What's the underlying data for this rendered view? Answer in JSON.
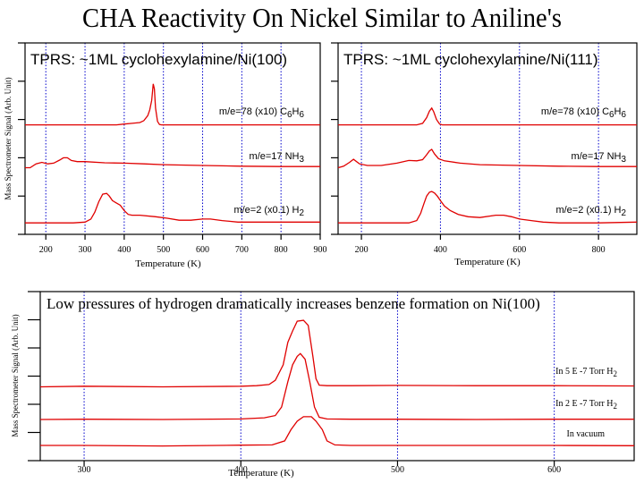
{
  "page_title": "CHA Reactivity On Nickel Similar to Aniline's",
  "chart_data": [
    {
      "id": "ni100",
      "type": "line",
      "title": "TPRS: ~1ML  cyclohexylamine/Ni(100)",
      "xlabel": "Temperature (K)",
      "ylabel": "Mass Spectrometer Signal (Arb. Unit)",
      "xlim": [
        147,
        900
      ],
      "ylim": [
        0,
        5
      ],
      "xticks": [
        200,
        300,
        400,
        500,
        600,
        700,
        800,
        900
      ],
      "yticks": [
        0,
        1,
        2,
        3,
        4,
        5
      ],
      "grid_x": [
        200,
        300,
        400,
        500,
        600,
        700,
        800
      ],
      "series": [
        {
          "name": "m/e=78 (x10) C6H6",
          "label_main": "m/e=78 (x10) C",
          "sub1": "6",
          "mid": "H",
          "sub2": "6",
          "x": [
            147,
            380,
            400,
            420,
            440,
            450,
            460,
            465,
            470,
            474,
            477,
            480,
            485,
            490,
            495,
            900
          ],
          "y": [
            2.86,
            2.86,
            2.88,
            2.9,
            2.92,
            2.97,
            3.1,
            3.25,
            3.5,
            3.93,
            3.8,
            3.3,
            2.95,
            2.87,
            2.86,
            2.86
          ]
        },
        {
          "name": "m/e=17 NH3",
          "label_main": "m/e=17  NH",
          "sub1": "3",
          "mid": "",
          "sub2": "",
          "x": [
            147,
            160,
            175,
            190,
            205,
            220,
            235,
            245,
            255,
            265,
            280,
            300,
            350,
            400,
            450,
            500,
            600,
            700,
            800,
            900
          ],
          "y": [
            1.74,
            1.74,
            1.84,
            1.88,
            1.84,
            1.86,
            1.94,
            2.0,
            2.0,
            1.93,
            1.9,
            1.9,
            1.87,
            1.86,
            1.84,
            1.82,
            1.8,
            1.78,
            1.77,
            1.77
          ]
        },
        {
          "name": "m/e=2 (x0.1) H2",
          "label_main": "m/e=2 (x0.1) H",
          "sub1": "2",
          "mid": "",
          "sub2": "",
          "x": [
            147,
            270,
            300,
            315,
            325,
            335,
            345,
            355,
            362,
            370,
            380,
            390,
            400,
            410,
            420,
            440,
            480,
            510,
            540,
            570,
            600,
            620,
            650,
            690,
            750,
            900
          ],
          "y": [
            0.3,
            0.3,
            0.32,
            0.4,
            0.58,
            0.85,
            1.05,
            1.07,
            1.0,
            0.88,
            0.82,
            0.76,
            0.62,
            0.52,
            0.5,
            0.5,
            0.46,
            0.42,
            0.37,
            0.37,
            0.4,
            0.4,
            0.36,
            0.32,
            0.32,
            0.32
          ]
        }
      ]
    },
    {
      "id": "ni111",
      "type": "line",
      "title": "TPRS: ~1ML  cyclohexylamine/Ni(111)",
      "xlabel": "Temperature (K)",
      "ylabel": "",
      "xlim": [
        141,
        897
      ],
      "ylim": [
        0,
        5
      ],
      "xticks": [
        200,
        400,
        600,
        800
      ],
      "yticks": [
        0,
        1,
        2,
        3,
        4,
        5
      ],
      "grid_x": [
        200,
        400,
        600,
        800
      ],
      "series": [
        {
          "name": "m/e=78 (x10) C6H6",
          "label_main": "m/e=78 (x10) C",
          "sub1": "6",
          "mid": "H",
          "sub2": "6",
          "x": [
            141,
            340,
            355,
            365,
            372,
            378,
            383,
            390,
            398,
            405,
            420,
            897
          ],
          "y": [
            2.86,
            2.86,
            2.9,
            3.05,
            3.22,
            3.3,
            3.2,
            3.0,
            2.88,
            2.86,
            2.86,
            2.86
          ]
        },
        {
          "name": "m/e=17 NH3",
          "label_main": "m/e=17  NH",
          "sub1": "3",
          "mid": "",
          "sub2": "",
          "x": [
            141,
            155,
            170,
            180,
            195,
            215,
            250,
            290,
            320,
            340,
            355,
            365,
            372,
            378,
            385,
            395,
            410,
            450,
            500,
            600,
            700,
            800,
            897
          ],
          "y": [
            1.74,
            1.78,
            1.88,
            1.96,
            1.84,
            1.8,
            1.8,
            1.86,
            1.93,
            1.92,
            1.95,
            2.08,
            2.18,
            2.22,
            2.1,
            1.98,
            1.92,
            1.86,
            1.82,
            1.8,
            1.78,
            1.77,
            1.77
          ]
        },
        {
          "name": "m/e=2 (x0.1) H2",
          "label_main": "m/e=2 (x0.1) H",
          "sub1": "2",
          "mid": "",
          "sub2": "",
          "x": [
            141,
            320,
            340,
            350,
            358,
            365,
            372,
            378,
            385,
            392,
            400,
            410,
            425,
            445,
            470,
            500,
            540,
            560,
            580,
            600,
            630,
            660,
            700,
            800,
            897
          ],
          "y": [
            0.3,
            0.3,
            0.36,
            0.55,
            0.8,
            1.0,
            1.1,
            1.12,
            1.08,
            1.0,
            0.88,
            0.74,
            0.62,
            0.52,
            0.46,
            0.44,
            0.5,
            0.5,
            0.46,
            0.4,
            0.36,
            0.32,
            0.3,
            0.3,
            0.32
          ]
        }
      ]
    },
    {
      "id": "ni100-h2",
      "type": "line",
      "title": "Low pressures of hydrogen dramatically increases benzene formation on Ni(100)",
      "xlabel": "Temperature (K)",
      "ylabel": "Mass Spectrometer Signal (Arb. Unit)",
      "xlim": [
        272,
        651
      ],
      "ylim": [
        0,
        6
      ],
      "xticks": [
        300,
        400,
        500,
        600
      ],
      "yticks": [
        0,
        1,
        2,
        3,
        4,
        5,
        6
      ],
      "grid_x": [
        300,
        400,
        500,
        600
      ],
      "series": [
        {
          "name": "In 5 E -7 Torr H2",
          "label_main": "In 5 E -7 Torr H",
          "sub1": "2",
          "mid": "",
          "sub2": "",
          "x": [
            272,
            300,
            350,
            400,
            410,
            418,
            422,
            427,
            430,
            433,
            436,
            440,
            443,
            446,
            448,
            450,
            455,
            470,
            500,
            550,
            600,
            651
          ],
          "y": [
            2.62,
            2.64,
            2.62,
            2.64,
            2.66,
            2.7,
            2.85,
            3.4,
            4.2,
            4.6,
            4.95,
            4.98,
            4.8,
            3.7,
            2.9,
            2.68,
            2.66,
            2.66,
            2.67,
            2.66,
            2.66,
            2.65
          ]
        },
        {
          "name": "In 2 E -7 Torr H2",
          "label_main": "In 2 E -7 Torr H",
          "sub1": "2",
          "mid": "",
          "sub2": "",
          "x": [
            272,
            300,
            350,
            400,
            415,
            422,
            426,
            430,
            433,
            436,
            438,
            441,
            444,
            447,
            450,
            455,
            470,
            500,
            550,
            600,
            651
          ],
          "y": [
            1.46,
            1.47,
            1.46,
            1.48,
            1.52,
            1.6,
            1.9,
            2.8,
            3.4,
            3.7,
            3.8,
            3.6,
            2.8,
            1.9,
            1.54,
            1.48,
            1.47,
            1.47,
            1.46,
            1.47,
            1.47
          ]
        },
        {
          "name": "In vacuum",
          "label_main": "In vacuum",
          "sub1": "",
          "mid": "",
          "sub2": "",
          "x": [
            272,
            300,
            350,
            400,
            420,
            428,
            432,
            436,
            440,
            445,
            448,
            452,
            455,
            460,
            470,
            500,
            550,
            600,
            651
          ],
          "y": [
            0.54,
            0.54,
            0.52,
            0.55,
            0.56,
            0.7,
            1.1,
            1.4,
            1.56,
            1.56,
            1.4,
            1.1,
            0.7,
            0.56,
            0.54,
            0.54,
            0.54,
            0.54,
            0.53
          ]
        }
      ]
    }
  ],
  "colors": {
    "curve": "#e00000",
    "grid": "#0000cc",
    "axis": "#000000"
  }
}
